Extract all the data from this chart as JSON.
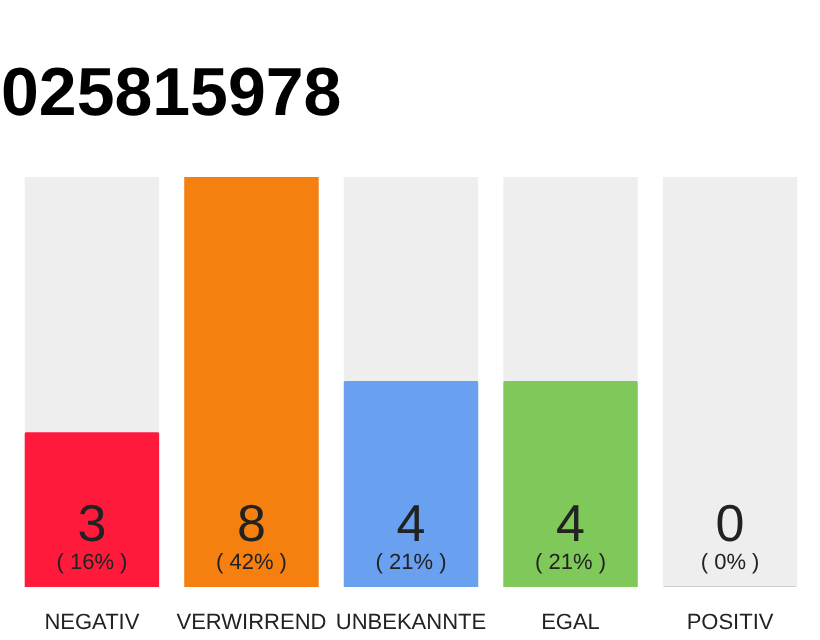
{
  "chart_data": {
    "type": "bar",
    "title": "025815978",
    "categories": [
      "NEGATIV",
      "VERWIRREND",
      "UNBEKANNTE",
      "EGAL",
      "POSITIV"
    ],
    "values": [
      3,
      8,
      4,
      4,
      0
    ],
    "colors": [
      "#ff1a3c",
      "#f57f0f",
      "#6aa0f0",
      "#7ec95a",
      "#cccccc"
    ],
    "value_labels": [
      "3\n( 16% )",
      "8\n( 42% )",
      "4\n( 21% )",
      "4\n( 21% )",
      "0\n( 0% )"
    ],
    "tick_labels": "x",
    "grid": false
  }
}
